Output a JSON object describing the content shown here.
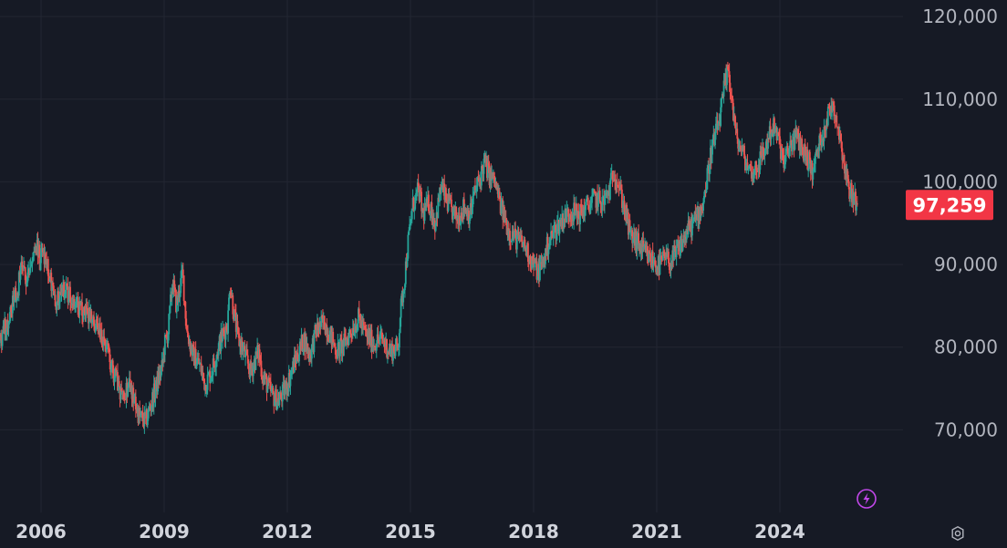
{
  "chart_data": {
    "type": "candlestick",
    "title": "",
    "xlabel": "",
    "ylabel": "",
    "ylim": [
      60000,
      122000
    ],
    "xlim": [
      2005.0,
      2027.0
    ],
    "y_ticks": [
      120000,
      110000,
      100000,
      90000,
      80000,
      70000
    ],
    "y_tick_labels": [
      "120,000",
      "110,000",
      "100,000",
      "90,000",
      "80,000",
      "70,000"
    ],
    "x_ticks": [
      2006,
      2009,
      2012,
      2015,
      2018,
      2021,
      2024
    ],
    "x_tick_labels": [
      "2006",
      "2009",
      "2012",
      "2015",
      "2018",
      "2021",
      "2024"
    ],
    "last_price": 97259,
    "last_price_label": "97,259",
    "grid": true,
    "colors": {
      "background": "#161a25",
      "grid": "#232632",
      "up": "#26a69a",
      "down": "#ef5350",
      "price_label_bg": "#f23645",
      "flash_icon": "#c147e9"
    },
    "price_path": [
      [
        2005.0,
        80500
      ],
      [
        2005.2,
        83500
      ],
      [
        2005.4,
        86500
      ],
      [
        2005.55,
        90000
      ],
      [
        2005.65,
        88000
      ],
      [
        2005.85,
        92000
      ],
      [
        2006.1,
        90500
      ],
      [
        2006.2,
        88500
      ],
      [
        2006.35,
        85500
      ],
      [
        2006.5,
        87000
      ],
      [
        2006.8,
        85500
      ],
      [
        2007.0,
        84500
      ],
      [
        2007.2,
        83500
      ],
      [
        2007.5,
        81000
      ],
      [
        2007.8,
        76500
      ],
      [
        2007.95,
        74000
      ],
      [
        2008.15,
        75500
      ],
      [
        2008.4,
        71500
      ],
      [
        2008.55,
        71000
      ],
      [
        2008.7,
        73500
      ],
      [
        2008.85,
        76000
      ],
      [
        2008.95,
        77500
      ],
      [
        2009.0,
        80000
      ],
      [
        2009.1,
        82000
      ],
      [
        2009.2,
        88000
      ],
      [
        2009.3,
        85000
      ],
      [
        2009.45,
        89000
      ],
      [
        2009.55,
        82000
      ],
      [
        2009.7,
        79000
      ],
      [
        2009.85,
        78000
      ],
      [
        2010.0,
        75500
      ],
      [
        2010.15,
        77000
      ],
      [
        2010.35,
        80500
      ],
      [
        2010.55,
        83000
      ],
      [
        2010.6,
        88000
      ],
      [
        2010.7,
        84000
      ],
      [
        2010.8,
        81000
      ],
      [
        2010.9,
        80000
      ],
      [
        2011.1,
        77000
      ],
      [
        2011.3,
        79500
      ],
      [
        2011.4,
        76500
      ],
      [
        2011.65,
        74000
      ],
      [
        2011.8,
        73500
      ],
      [
        2012.0,
        75500
      ],
      [
        2012.2,
        78500
      ],
      [
        2012.4,
        81000
      ],
      [
        2012.55,
        79000
      ],
      [
        2012.7,
        82000
      ],
      [
        2012.9,
        83000
      ],
      [
        2013.05,
        81500
      ],
      [
        2013.2,
        79500
      ],
      [
        2013.4,
        80500
      ],
      [
        2013.55,
        82000
      ],
      [
        2013.75,
        83500
      ],
      [
        2013.9,
        81500
      ],
      [
        2014.1,
        80500
      ],
      [
        2014.3,
        81000
      ],
      [
        2014.5,
        79500
      ],
      [
        2014.7,
        80000
      ],
      [
        2014.75,
        84000
      ],
      [
        2014.85,
        88000
      ],
      [
        2014.95,
        93000
      ],
      [
        2015.05,
        97000
      ],
      [
        2015.2,
        99000
      ],
      [
        2015.3,
        96000
      ],
      [
        2015.45,
        97500
      ],
      [
        2015.6,
        95000
      ],
      [
        2015.75,
        99500
      ],
      [
        2015.85,
        98000
      ],
      [
        2016.0,
        96500
      ],
      [
        2016.15,
        95500
      ],
      [
        2016.3,
        97000
      ],
      [
        2016.45,
        96000
      ],
      [
        2016.55,
        98500
      ],
      [
        2016.7,
        100500
      ],
      [
        2016.8,
        102500
      ],
      [
        2016.9,
        101000
      ],
      [
        2017.05,
        100000
      ],
      [
        2017.2,
        97000
      ],
      [
        2017.4,
        94000
      ],
      [
        2017.6,
        93000
      ],
      [
        2017.75,
        92500
      ],
      [
        2017.9,
        91000
      ],
      [
        2018.1,
        89000
      ],
      [
        2018.25,
        90500
      ],
      [
        2018.35,
        92500
      ],
      [
        2018.5,
        94000
      ],
      [
        2018.7,
        95500
      ],
      [
        2018.9,
        96500
      ],
      [
        2019.1,
        96000
      ],
      [
        2019.3,
        97000
      ],
      [
        2019.5,
        98000
      ],
      [
        2019.7,
        97500
      ],
      [
        2019.85,
        99000
      ],
      [
        2019.95,
        101500
      ],
      [
        2020.05,
        100000
      ],
      [
        2020.15,
        98000
      ],
      [
        2020.25,
        96000
      ],
      [
        2020.35,
        93500
      ],
      [
        2020.55,
        92500
      ],
      [
        2020.75,
        91000
      ],
      [
        2020.9,
        90500
      ],
      [
        2021.05,
        89800
      ],
      [
        2021.2,
        90800
      ],
      [
        2021.35,
        90200
      ],
      [
        2021.55,
        92000
      ],
      [
        2021.75,
        94000
      ],
      [
        2021.95,
        95500
      ],
      [
        2022.1,
        97000
      ],
      [
        2022.2,
        99500
      ],
      [
        2022.3,
        103000
      ],
      [
        2022.45,
        106000
      ],
      [
        2022.55,
        108000
      ],
      [
        2022.65,
        111500
      ],
      [
        2022.75,
        113500
      ],
      [
        2022.85,
        109000
      ],
      [
        2022.95,
        105000
      ],
      [
        2023.05,
        104000
      ],
      [
        2023.2,
        102000
      ],
      [
        2023.35,
        101000
      ],
      [
        2023.5,
        102500
      ],
      [
        2023.65,
        104000
      ],
      [
        2023.75,
        106000
      ],
      [
        2023.85,
        106500
      ],
      [
        2024.0,
        104500
      ],
      [
        2024.1,
        102000
      ],
      [
        2024.25,
        104500
      ],
      [
        2024.4,
        105500
      ],
      [
        2024.55,
        104000
      ],
      [
        2024.7,
        102500
      ],
      [
        2024.8,
        101000
      ],
      [
        2024.9,
        103500
      ],
      [
        2025.05,
        106000
      ],
      [
        2025.2,
        108500
      ],
      [
        2025.3,
        109500
      ],
      [
        2025.4,
        107000
      ],
      [
        2025.5,
        104500
      ],
      [
        2025.6,
        101000
      ],
      [
        2025.7,
        99000
      ],
      [
        2025.8,
        98000
      ],
      [
        2025.9,
        97259
      ]
    ]
  },
  "icons": {
    "flash": "lightning-icon",
    "settings": "settings-icon"
  }
}
